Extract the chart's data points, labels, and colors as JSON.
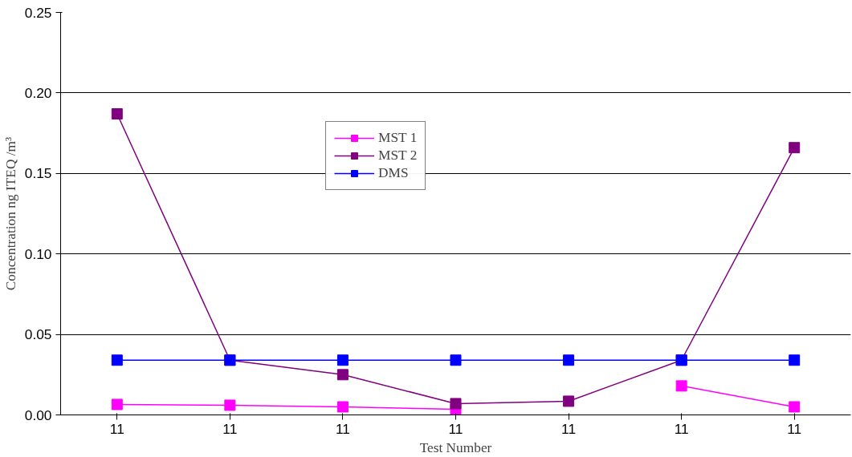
{
  "chart_data": {
    "type": "line",
    "xlabel": "Test Number",
    "ylabel": "Concentration ng ITEQ /m³",
    "categories": [
      "11",
      "11",
      "11",
      "11",
      "11",
      "11",
      "11"
    ],
    "ylim": [
      0,
      0.25
    ],
    "yticks": [
      {
        "value": 0,
        "label": "0.00"
      },
      {
        "value": 0.05,
        "label": "0.05"
      },
      {
        "value": 0.1,
        "label": "0.10"
      },
      {
        "value": 0.15,
        "label": "0.15"
      },
      {
        "value": 0.2,
        "label": "0.20"
      },
      {
        "value": 0.25,
        "label": "0.25"
      }
    ],
    "grid": "y",
    "legend": "top",
    "marker": "square",
    "line_style": "solid",
    "series": [
      {
        "name": "MST 1",
        "color": "#ff00ff",
        "values": [
          0.0065,
          0.006,
          0.005,
          0.0035,
          null,
          0.018,
          0.005
        ]
      },
      {
        "name": "MST 2",
        "color": "#800080",
        "values": [
          0.187,
          0.034,
          0.025,
          0.007,
          0.0085,
          0.034,
          0.166
        ]
      },
      {
        "name": "DMS",
        "color": "#0000ff",
        "values": [
          0.034,
          0.034,
          0.034,
          0.034,
          0.034,
          0.034,
          0.034
        ]
      }
    ]
  }
}
